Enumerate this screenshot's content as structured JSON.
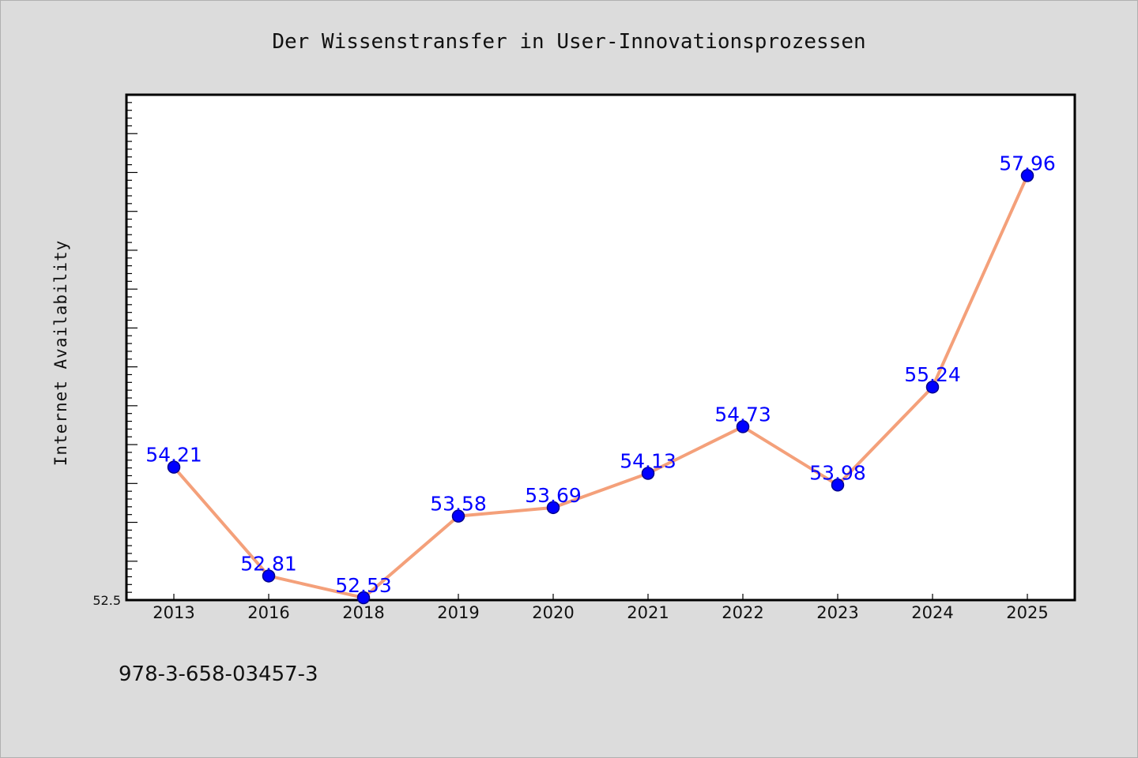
{
  "chart_data": {
    "type": "line",
    "title": "Der Wissenstransfer in User-Innovationsprozessen",
    "xlabel": "",
    "ylabel": "Internet Availability",
    "categories": [
      "2013",
      "2016",
      "2018",
      "2019",
      "2020",
      "2021",
      "2022",
      "2023",
      "2024",
      "2025"
    ],
    "values": [
      54.21,
      52.81,
      52.53,
      53.58,
      53.69,
      54.13,
      54.73,
      53.98,
      55.24,
      57.96
    ],
    "value_labels": [
      "54.21",
      "52.81",
      "52.53",
      "53.58",
      "53.69",
      "54.13",
      "54.73",
      "53.98",
      "55.24",
      "57.96"
    ],
    "ylim": [
      52.5,
      59
    ],
    "y_tick_labels": [
      "52.5"
    ],
    "grid": false,
    "legend": "none",
    "colors": {
      "line": "#f4a07a",
      "marker": "#0000ff",
      "label": "#0000ff",
      "background": "#dcdcdc",
      "plot_background": "#ffffff"
    }
  },
  "footer": {
    "isbn": "978-3-658-03457-3"
  }
}
